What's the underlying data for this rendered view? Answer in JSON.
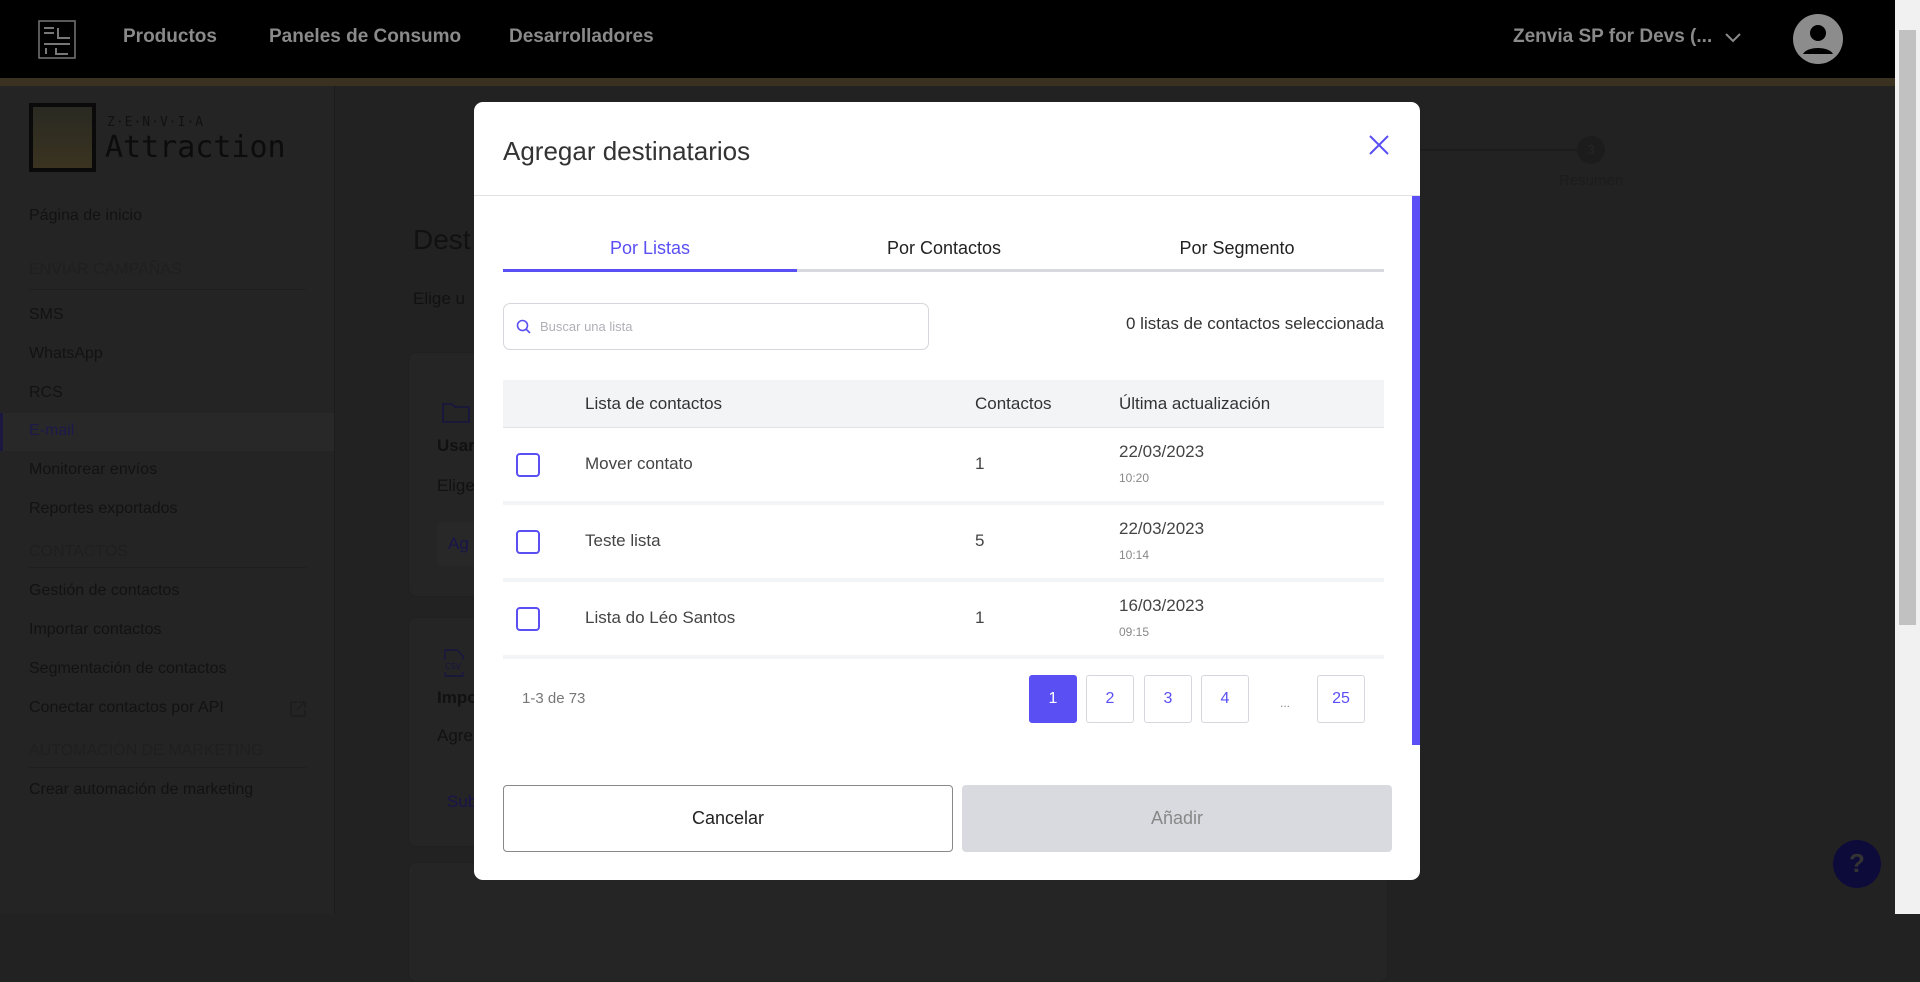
{
  "navbar": {
    "items": [
      "Productos",
      "Paneles de Consumo",
      "Desarrolladores"
    ],
    "account": "Zenvia SP for Devs (...",
    "logo_text": "ZEN VIA"
  },
  "sidebar": {
    "brand_top": "Z·E·N·V·I·A",
    "brand": "Attraction",
    "home": "Página de inicio",
    "sections": [
      {
        "title": "ENVIAR CAMPAÑAS",
        "items": [
          "SMS",
          "WhatsApp",
          "RCS",
          "E-mail",
          "Monitorear envíos",
          "Reportes exportados"
        ]
      },
      {
        "title": "CONTACTOS",
        "items": [
          "Gestión de contactos",
          "Importar contactos",
          "Segmentación de contactos",
          "Conectar contactos por API"
        ]
      },
      {
        "title": "AUTOMACIÓN DE MARKETING",
        "items": [
          "Crear automación de marketing"
        ]
      }
    ],
    "active": "E-mail"
  },
  "main": {
    "title": "Dest",
    "subtitle": "Elige u",
    "card1_title": "Usar",
    "card1_text": "Elige",
    "card1_button": "Ag",
    "card2_title": "Impo",
    "card2_text": "Agre",
    "card2_link": "Sub",
    "step3_number": "3",
    "step3_label": "Resumen"
  },
  "modal": {
    "title": "Agregar destinatarios",
    "tabs": [
      {
        "label": "Por Listas",
        "active": true
      },
      {
        "label": "Por Contactos"
      },
      {
        "label": "Por Segmento"
      }
    ],
    "search_placeholder": "Buscar una lista",
    "selected_count": "0 listas de contactos seleccionada",
    "columns": [
      "Lista de contactos",
      "Contactos",
      "Última actualización"
    ],
    "rows": [
      {
        "name": "Mover contato",
        "contacts": "1",
        "date": "22/03/2023",
        "time": "10:20",
        "checked": false
      },
      {
        "name": "Teste lista",
        "contacts": "5",
        "date": "22/03/2023",
        "time": "10:14",
        "checked": false
      },
      {
        "name": "Lista do Léo Santos",
        "contacts": "1",
        "date": "16/03/2023",
        "time": "09:15",
        "checked": false
      }
    ],
    "range": "1-3 de 73",
    "pages": [
      "1",
      "2",
      "3",
      "4",
      "25"
    ],
    "ellipsis": "...",
    "current_page": "1",
    "cancel": "Cancelar",
    "add": "Añadir"
  },
  "colors": {
    "primary": "#5a4ff3",
    "disabled": "#d9dadf"
  }
}
